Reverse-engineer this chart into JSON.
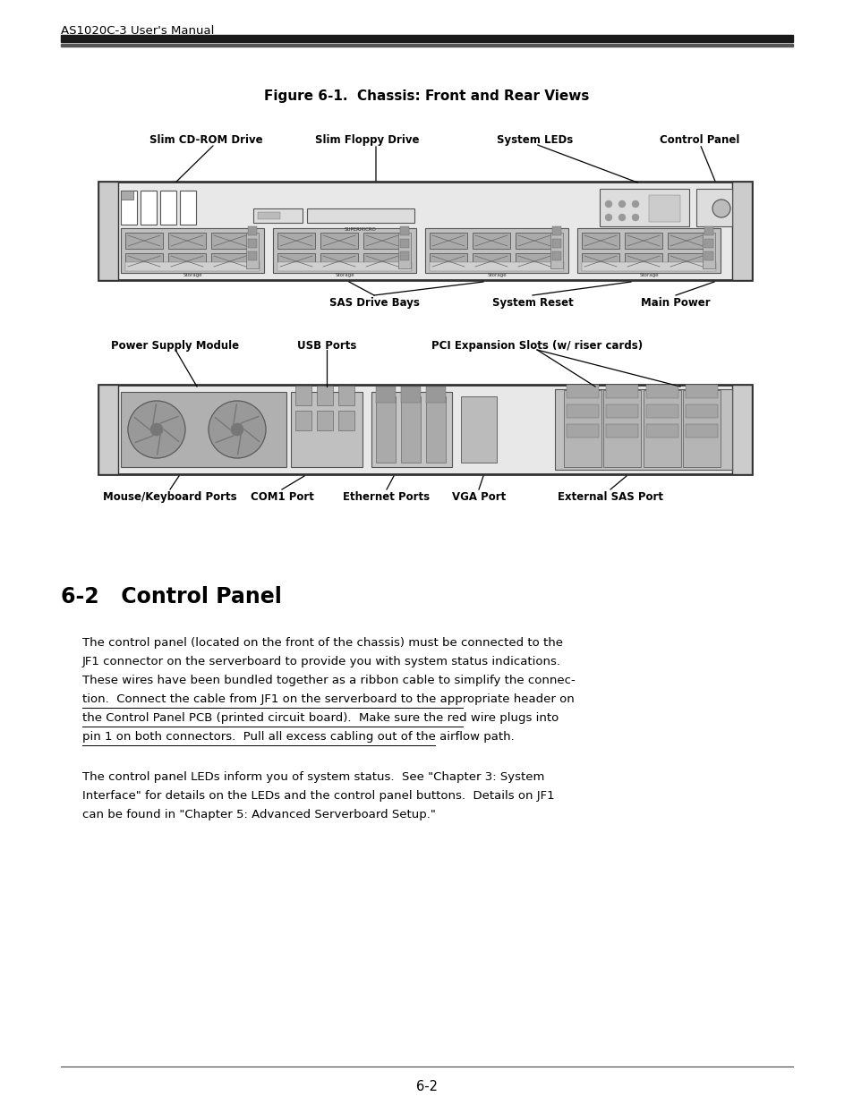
{
  "page_header": "AS1020C-3 User's Manual",
  "figure_title": "Figure 6-1.  Chassis: Front and Rear Views",
  "section_title": "6-2   Control Panel",
  "para1_lines": [
    [
      "The control panel (located on the front of the chassis) must be connected to the",
      false
    ],
    [
      "JF1 connector on the serverboard to provide you with system status indications.",
      false
    ],
    [
      "These wires have been bundled together as a ribbon cable to simplify the connec-",
      false
    ],
    [
      "tion.  Connect the cable from JF1 on the serverboard to the appropriate header on",
      true
    ],
    [
      "the Control Panel PCB (printed circuit board).  Make sure the red wire plugs into",
      true
    ],
    [
      "pin 1 on both connectors.  Pull all excess cabling out of the airflow path.",
      true
    ]
  ],
  "para2_lines": [
    "The control panel LEDs inform you of system status.  See \"Chapter 3: System",
    "Interface\" for details on the LEDs and the control panel buttons.  Details on JF1",
    "can be found in \"Chapter 5: Advanced Serverboard Setup.\""
  ],
  "footer_text": "6-2",
  "bg_color": "#ffffff",
  "text_color": "#000000",
  "header_bar_color": "#1a1a1a",
  "chassis_edge_color": "#333333",
  "chassis_light_gray": "#e8e8e8",
  "chassis_mid_gray": "#c8c8c8",
  "chassis_dark_gray": "#888888"
}
